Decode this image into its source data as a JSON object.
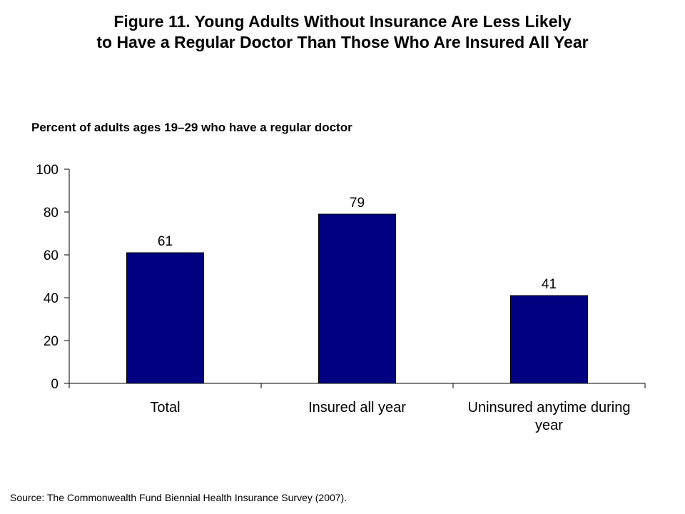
{
  "title": {
    "line1": "Figure 11. Young Adults Without Insurance Are Less Likely",
    "line2": "to Have a Regular Doctor Than Those Who Are Insured All Year"
  },
  "subtitle": "Percent of adults ages 19–29 who have a regular doctor",
  "source": "Source: The Commonwealth Fund Biennial Health Insurance Survey (2007).",
  "colors": {
    "bar": "#000080"
  },
  "chart_data": {
    "type": "bar",
    "categories": [
      [
        "Total"
      ],
      [
        "Insured all year"
      ],
      [
        "Uninsured anytime during",
        "year"
      ]
    ],
    "values": [
      61,
      79,
      41
    ],
    "data_labels": [
      "61",
      "79",
      "41"
    ],
    "ylim": [
      0,
      100
    ],
    "yticks": [
      0,
      20,
      40,
      60,
      80,
      100
    ],
    "grid": false,
    "legend": "none"
  }
}
